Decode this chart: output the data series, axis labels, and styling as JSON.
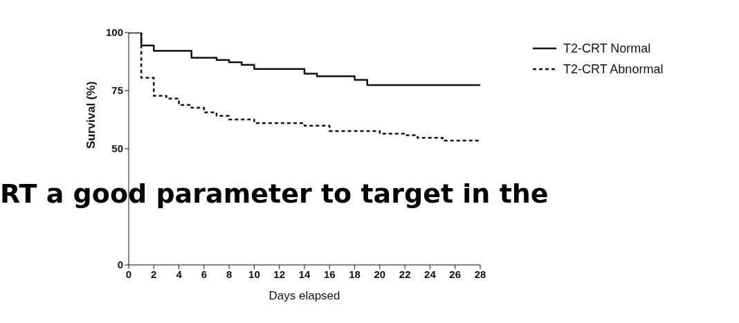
{
  "chart_data": {
    "type": "step",
    "xlabel": "Days elapsed",
    "ylabel": "Survival (%)",
    "xlim": [
      0,
      28
    ],
    "xticks": [
      0,
      2,
      4,
      6,
      8,
      10,
      12,
      14,
      16,
      18,
      20,
      22,
      24,
      26,
      28
    ],
    "ylim": [
      0,
      100
    ],
    "yticks": [
      0,
      50,
      75,
      100
    ],
    "legend": "top right",
    "marker": "none",
    "series": [
      {
        "name": "T2-CRT Normal",
        "color": "#111111",
        "line_style": "solid",
        "x": [
          0,
          1,
          2,
          5,
          7,
          8,
          9,
          10,
          14,
          15,
          18,
          19,
          28
        ],
        "values": [
          100,
          94.4,
          92.1,
          89.1,
          88.2,
          87.2,
          86.1,
          84.3,
          82.3,
          81.2,
          79.6,
          77.4,
          77.4
        ]
      },
      {
        "name": "T2-CRT Abnormal",
        "color": "#111111",
        "line_style": "dashed",
        "x": [
          0,
          1,
          2,
          3,
          4,
          5,
          6,
          7,
          8,
          10,
          14,
          16,
          20,
          22,
          23,
          25,
          28
        ],
        "values": [
          100,
          80.5,
          72.8,
          71.6,
          68.8,
          67.6,
          65.6,
          64.1,
          62.6,
          61.0,
          59.9,
          57.6,
          56.5,
          55.8,
          54.7,
          53.5,
          53.5
        ]
      }
    ],
    "annotations": [
      "RT a good parameter to target in the"
    ]
  }
}
